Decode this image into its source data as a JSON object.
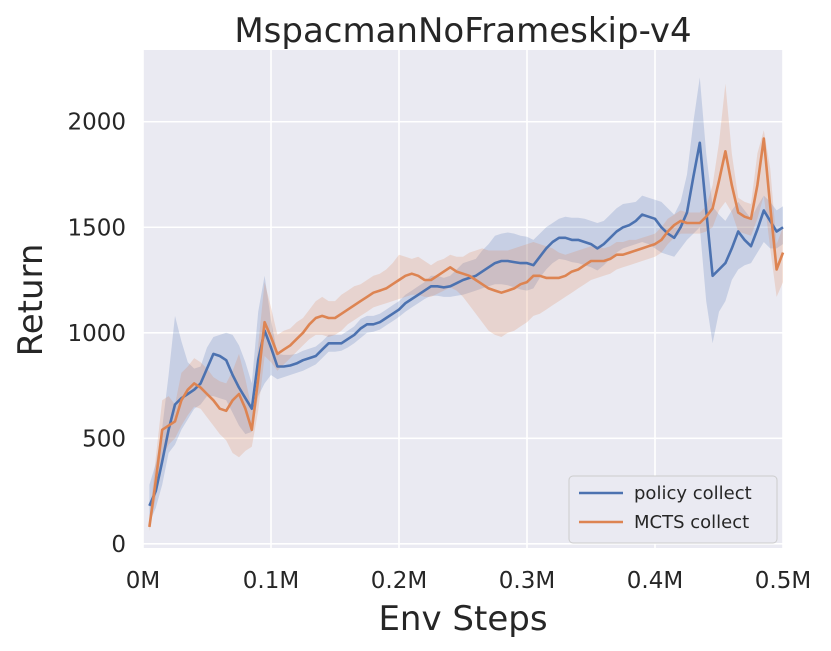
{
  "chart_data": {
    "type": "line",
    "title": "MspacmanNoFrameskip-v4",
    "xlabel": "Env Steps",
    "ylabel": "Return",
    "xlim": [
      0,
      500000
    ],
    "ylim": [
      -20,
      2340
    ],
    "xticks": [
      0,
      100000,
      200000,
      300000,
      400000,
      500000
    ],
    "xtick_labels": [
      "0M",
      "0.1M",
      "0.2M",
      "0.3M",
      "0.4M",
      "0.5M"
    ],
    "yticks": [
      0,
      500,
      1000,
      1500,
      2000
    ],
    "ytick_labels": [
      "0",
      "500",
      "1000",
      "1500",
      "2000"
    ],
    "grid": true,
    "legend_position": "lower-right",
    "series": [
      {
        "name": "policy collect",
        "color": "#4c72b0",
        "x": [
          5000,
          10000,
          15000,
          20000,
          25000,
          30000,
          35000,
          40000,
          45000,
          50000,
          55000,
          60000,
          65000,
          70000,
          75000,
          80000,
          85000,
          90000,
          95000,
          100000,
          105000,
          110000,
          115000,
          120000,
          125000,
          130000,
          135000,
          140000,
          145000,
          150000,
          155000,
          160000,
          165000,
          170000,
          175000,
          180000,
          185000,
          190000,
          195000,
          200000,
          205000,
          210000,
          215000,
          220000,
          225000,
          230000,
          235000,
          240000,
          245000,
          250000,
          255000,
          260000,
          265000,
          270000,
          275000,
          280000,
          285000,
          290000,
          295000,
          300000,
          305000,
          310000,
          315000,
          320000,
          325000,
          330000,
          335000,
          340000,
          345000,
          350000,
          355000,
          360000,
          365000,
          370000,
          375000,
          380000,
          385000,
          390000,
          395000,
          400000,
          405000,
          410000,
          415000,
          420000,
          425000,
          430000,
          435000,
          440000,
          445000,
          450000,
          455000,
          460000,
          465000,
          470000,
          475000,
          480000,
          485000,
          490000,
          495000,
          500000
        ],
        "y": [
          180,
          250,
          390,
          540,
          660,
          690,
          710,
          730,
          760,
          830,
          900,
          890,
          870,
          800,
          740,
          690,
          640,
          870,
          1010,
          930,
          840,
          840,
          845,
          855,
          870,
          880,
          890,
          920,
          950,
          950,
          950,
          970,
          990,
          1020,
          1040,
          1040,
          1050,
          1070,
          1090,
          1110,
          1140,
          1160,
          1180,
          1200,
          1220,
          1220,
          1215,
          1220,
          1235,
          1250,
          1260,
          1270,
          1290,
          1310,
          1330,
          1340,
          1340,
          1335,
          1330,
          1330,
          1320,
          1360,
          1400,
          1430,
          1450,
          1450,
          1440,
          1440,
          1430,
          1420,
          1400,
          1420,
          1450,
          1480,
          1500,
          1510,
          1530,
          1560,
          1550,
          1540,
          1500,
          1470,
          1450,
          1500,
          1570,
          1740,
          1900,
          1580,
          1270,
          1300,
          1330,
          1400,
          1480,
          1440,
          1410,
          1490,
          1580,
          1530,
          1480,
          1500
        ],
        "lower": [
          100,
          170,
          280,
          430,
          470,
          540,
          590,
          640,
          660,
          700,
          700,
          690,
          680,
          620,
          560,
          520,
          530,
          700,
          760,
          800,
          780,
          790,
          800,
          810,
          820,
          835,
          850,
          880,
          910,
          910,
          915,
          930,
          950,
          975,
          1000,
          1005,
          1015,
          1035,
          1055,
          1075,
          1100,
          1120,
          1140,
          1160,
          1175,
          1175,
          1170,
          1170,
          1175,
          1180,
          1190,
          1200,
          1210,
          1220,
          1230,
          1230,
          1225,
          1215,
          1205,
          1200,
          1210,
          1260,
          1300,
          1330,
          1350,
          1345,
          1335,
          1330,
          1320,
          1310,
          1295,
          1320,
          1350,
          1380,
          1400,
          1410,
          1420,
          1430,
          1420,
          1400,
          1380,
          1370,
          1360,
          1400,
          1440,
          1470,
          1500,
          1150,
          950,
          1100,
          1150,
          1250,
          1300,
          1320,
          1330,
          1380,
          1430,
          1400,
          1400,
          1420
        ],
        "upper": [
          280,
          380,
          550,
          800,
          1080,
          960,
          860,
          830,
          840,
          930,
          980,
          990,
          1000,
          990,
          940,
          860,
          760,
          1100,
          1270,
          1060,
          900,
          895,
          895,
          900,
          915,
          925,
          935,
          960,
          990,
          990,
          990,
          1010,
          1030,
          1065,
          1080,
          1080,
          1090,
          1110,
          1130,
          1150,
          1180,
          1200,
          1220,
          1240,
          1270,
          1270,
          1260,
          1270,
          1300,
          1330,
          1340,
          1350,
          1390,
          1420,
          1460,
          1470,
          1475,
          1470,
          1460,
          1455,
          1440,
          1470,
          1500,
          1520,
          1540,
          1550,
          1545,
          1545,
          1540,
          1530,
          1520,
          1530,
          1560,
          1590,
          1610,
          1615,
          1620,
          1650,
          1640,
          1630,
          1620,
          1590,
          1560,
          1620,
          1750,
          2000,
          2210,
          1850,
          1600,
          1560,
          1530,
          1580,
          1620,
          1580,
          1540,
          1600,
          1650,
          1620,
          1580,
          1600
        ]
      },
      {
        "name": "MCTS collect",
        "color": "#dd8452",
        "x": [
          5000,
          10000,
          15000,
          20000,
          25000,
          30000,
          35000,
          40000,
          45000,
          50000,
          55000,
          60000,
          65000,
          70000,
          75000,
          80000,
          85000,
          90000,
          95000,
          100000,
          105000,
          110000,
          115000,
          120000,
          125000,
          130000,
          135000,
          140000,
          145000,
          150000,
          155000,
          160000,
          165000,
          170000,
          175000,
          180000,
          185000,
          190000,
          195000,
          200000,
          205000,
          210000,
          215000,
          220000,
          225000,
          230000,
          235000,
          240000,
          245000,
          250000,
          255000,
          260000,
          265000,
          270000,
          275000,
          280000,
          285000,
          290000,
          295000,
          300000,
          305000,
          310000,
          315000,
          320000,
          325000,
          330000,
          335000,
          340000,
          345000,
          350000,
          355000,
          360000,
          365000,
          370000,
          375000,
          380000,
          385000,
          390000,
          395000,
          400000,
          405000,
          410000,
          415000,
          420000,
          425000,
          430000,
          435000,
          440000,
          445000,
          450000,
          455000,
          460000,
          465000,
          470000,
          475000,
          480000,
          485000,
          490000,
          495000,
          500000
        ],
        "y": [
          80,
          300,
          540,
          560,
          580,
          680,
          730,
          760,
          740,
          710,
          680,
          640,
          630,
          680,
          710,
          640,
          540,
          780,
          1050,
          980,
          900,
          920,
          940,
          970,
          1000,
          1040,
          1070,
          1080,
          1070,
          1070,
          1090,
          1110,
          1130,
          1150,
          1170,
          1190,
          1200,
          1210,
          1230,
          1250,
          1270,
          1280,
          1270,
          1250,
          1250,
          1270,
          1290,
          1310,
          1290,
          1280,
          1270,
          1250,
          1230,
          1210,
          1200,
          1190,
          1200,
          1210,
          1230,
          1240,
          1270,
          1270,
          1260,
          1260,
          1260,
          1270,
          1290,
          1300,
          1320,
          1340,
          1340,
          1340,
          1350,
          1370,
          1370,
          1380,
          1390,
          1400,
          1410,
          1420,
          1440,
          1480,
          1510,
          1530,
          1520,
          1520,
          1520,
          1550,
          1590,
          1720,
          1860,
          1700,
          1570,
          1550,
          1540,
          1700,
          1920,
          1600,
          1300,
          1380
        ],
        "lower": [
          60,
          220,
          410,
          470,
          500,
          560,
          610,
          650,
          640,
          600,
          560,
          520,
          490,
          430,
          410,
          440,
          460,
          630,
          890,
          860,
          820,
          850,
          880,
          910,
          940,
          970,
          990,
          990,
          980,
          990,
          1010,
          1040,
          1060,
          1080,
          1100,
          1120,
          1130,
          1140,
          1150,
          1160,
          1170,
          1180,
          1180,
          1170,
          1170,
          1185,
          1200,
          1215,
          1200,
          1170,
          1130,
          1090,
          1050,
          1010,
          990,
          980,
          1000,
          1010,
          1030,
          1050,
          1080,
          1090,
          1110,
          1130,
          1150,
          1170,
          1190,
          1210,
          1230,
          1250,
          1260,
          1270,
          1280,
          1300,
          1310,
          1320,
          1330,
          1340,
          1350,
          1360,
          1380,
          1420,
          1450,
          1470,
          1470,
          1470,
          1470,
          1480,
          1500,
          1580,
          1620,
          1570,
          1480,
          1470,
          1460,
          1540,
          1650,
          1400,
          1170,
          1240
        ],
        "upper": [
          110,
          410,
          680,
          700,
          660,
          810,
          840,
          880,
          860,
          830,
          790,
          770,
          760,
          820,
          900,
          780,
          640,
          940,
          1240,
          1120,
          990,
          1010,
          1020,
          1050,
          1070,
          1110,
          1150,
          1170,
          1150,
          1150,
          1180,
          1200,
          1220,
          1230,
          1250,
          1270,
          1280,
          1300,
          1330,
          1370,
          1360,
          1350,
          1360,
          1340,
          1320,
          1340,
          1350,
          1370,
          1360,
          1360,
          1380,
          1390,
          1400,
          1390,
          1390,
          1390,
          1390,
          1400,
          1410,
          1420,
          1430,
          1420,
          1410,
          1400,
          1380,
          1370,
          1380,
          1390,
          1400,
          1410,
          1410,
          1400,
          1410,
          1430,
          1430,
          1440,
          1440,
          1450,
          1460,
          1470,
          1500,
          1540,
          1560,
          1580,
          1570,
          1570,
          1570,
          1600,
          1700,
          1900,
          2180,
          1850,
          1640,
          1620,
          1610,
          1850,
          1960,
          1780,
          1420,
          1500
        ]
      }
    ]
  }
}
